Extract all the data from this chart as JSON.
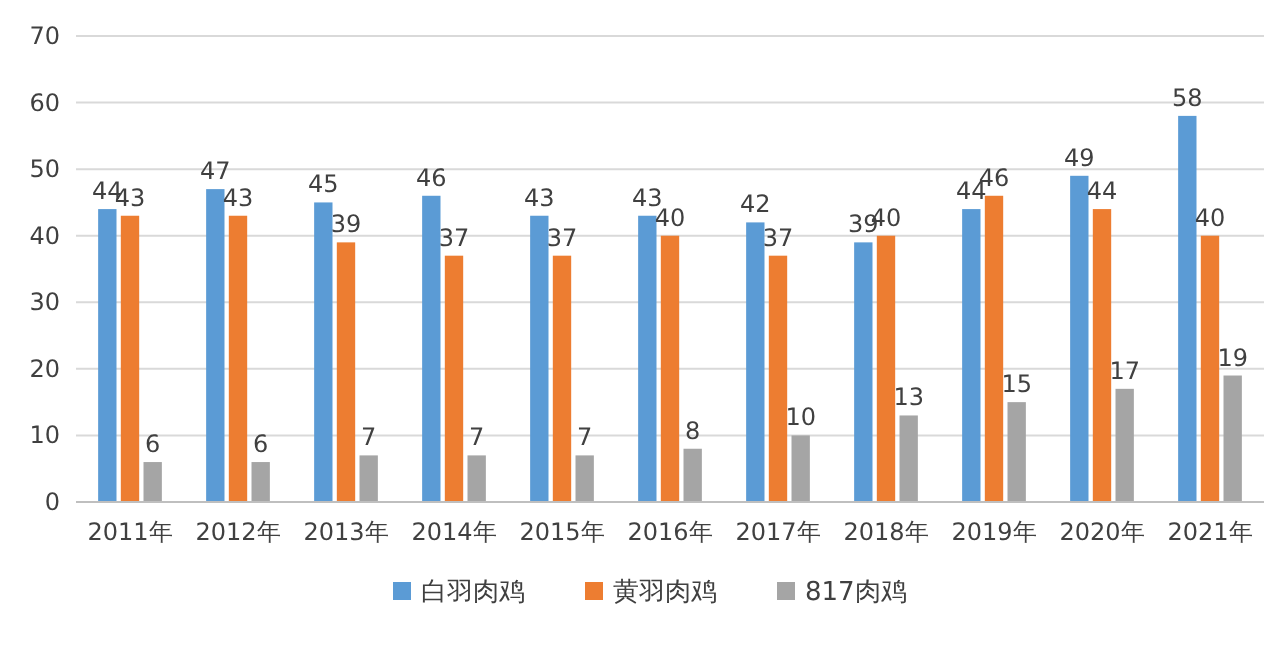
{
  "chart_data": {
    "type": "bar",
    "categories": [
      "2011年",
      "2012年",
      "2013年",
      "2014年",
      "2015年",
      "2016年",
      "2017年",
      "2018年",
      "2019年",
      "2020年",
      "2021年"
    ],
    "series": [
      {
        "name": "白羽肉鸡",
        "color": "#5b9bd5",
        "values": [
          44,
          47,
          45,
          46,
          43,
          43,
          42,
          39,
          44,
          49,
          58
        ]
      },
      {
        "name": "黄羽肉鸡",
        "color": "#ed7d31",
        "values": [
          43,
          43,
          39,
          37,
          37,
          40,
          37,
          40,
          46,
          44,
          40
        ]
      },
      {
        "name": "817肉鸡",
        "color": "#a5a5a5",
        "values": [
          6,
          6,
          7,
          7,
          7,
          8,
          10,
          13,
          15,
          17,
          19
        ]
      }
    ],
    "ylim": [
      0,
      70
    ],
    "yticks": [
      0,
      10,
      20,
      30,
      40,
      50,
      60,
      70
    ],
    "grid": "y",
    "legend": "bottom",
    "data_labels": true
  }
}
